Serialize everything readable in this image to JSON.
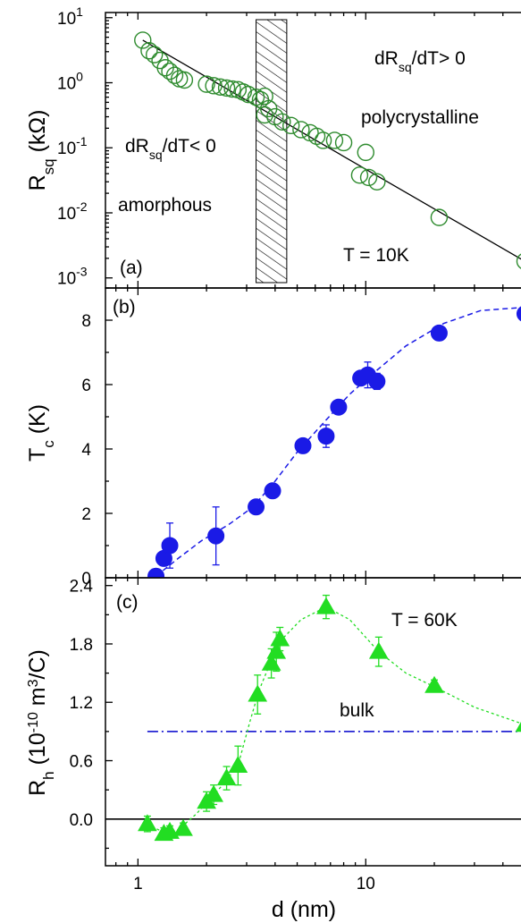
{
  "chart_data": [
    {
      "panel": "a",
      "type": "scatter",
      "panel_label": "(a)",
      "xscale": "log",
      "yscale": "log",
      "xlim": [
        0.72,
        55
      ],
      "ylim": [
        0.0007,
        12
      ],
      "ylabel": {
        "main": "R",
        "sub": "sq",
        "unit": " (kΩ)"
      },
      "yticks": [
        {
          "v": 0.001,
          "exp": "-3"
        },
        {
          "v": 0.01,
          "exp": "-2"
        },
        {
          "v": 0.1,
          "exp": "-1"
        },
        {
          "v": 1,
          "exp": "0"
        },
        {
          "v": 10,
          "exp": "1"
        }
      ],
      "tick_base": "10",
      "marker": "open-circle",
      "marker_color": "#2e8b2e",
      "points": [
        [
          1.05,
          4.5
        ],
        [
          1.12,
          3.1
        ],
        [
          1.18,
          2.7
        ],
        [
          1.25,
          2.2
        ],
        [
          1.32,
          1.7
        ],
        [
          1.38,
          1.5
        ],
        [
          1.45,
          1.3
        ],
        [
          1.52,
          1.15
        ],
        [
          1.6,
          1.1
        ],
        [
          2.0,
          0.95
        ],
        [
          2.15,
          0.9
        ],
        [
          2.3,
          0.86
        ],
        [
          2.45,
          0.83
        ],
        [
          2.6,
          0.8
        ],
        [
          2.75,
          0.78
        ],
        [
          2.9,
          0.72
        ],
        [
          3.05,
          0.66
        ],
        [
          3.3,
          0.6
        ],
        [
          3.45,
          0.55
        ],
        [
          3.6,
          0.62
        ],
        [
          3.6,
          0.32
        ],
        [
          3.75,
          0.4
        ],
        [
          4.0,
          0.3
        ],
        [
          4.3,
          0.25
        ],
        [
          4.7,
          0.22
        ],
        [
          5.2,
          0.19
        ],
        [
          5.7,
          0.17
        ],
        [
          6.1,
          0.15
        ],
        [
          6.5,
          0.13
        ],
        [
          7.3,
          0.13
        ],
        [
          8.0,
          0.12
        ],
        [
          10.0,
          0.085
        ],
        [
          9.4,
          0.038
        ],
        [
          10.3,
          0.035
        ],
        [
          11.2,
          0.03
        ],
        [
          21.0,
          0.0085
        ],
        [
          50.0,
          0.0018
        ]
      ],
      "fit_line": [
        [
          1.05,
          4.5
        ],
        [
          50.0,
          0.0018
        ]
      ],
      "hatched_band": [
        3.3,
        4.5
      ],
      "annotations": [
        {
          "name": "ann-positive",
          "main": "dR",
          "sub": "sq",
          "rest": "/dT> 0"
        },
        {
          "name": "ann-polycrystalline",
          "text": "polycrystalline"
        },
        {
          "name": "ann-negative",
          "main": "dR",
          "sub": "sq",
          "rest": "/dT< 0"
        },
        {
          "name": "ann-amorphous",
          "text": "amorphous"
        },
        {
          "name": "ann-temperature",
          "text": "T = 10K"
        }
      ]
    },
    {
      "panel": "b",
      "type": "scatter",
      "panel_label": "(b)",
      "xscale": "log",
      "xlim": [
        0.72,
        55
      ],
      "ylim": [
        0,
        9
      ],
      "ylabel": {
        "main": "T",
        "sub": "c",
        "unit": " (K)"
      },
      "yticks": [
        0,
        2,
        4,
        6,
        8
      ],
      "marker": "filled-circle",
      "marker_color": "#1a1ae6",
      "points": [
        {
          "x": 1.2,
          "y": 0.05,
          "err": 0
        },
        {
          "x": 1.3,
          "y": 0.6,
          "err": 0
        },
        {
          "x": 1.38,
          "y": 1.0,
          "err": 0.7
        },
        {
          "x": 2.2,
          "y": 1.3,
          "err": 0.9
        },
        {
          "x": 3.3,
          "y": 2.2,
          "err": 0.2
        },
        {
          "x": 3.9,
          "y": 2.7,
          "err": 0
        },
        {
          "x": 5.3,
          "y": 4.1,
          "err": 0
        },
        {
          "x": 6.7,
          "y": 4.4,
          "err": 0.35
        },
        {
          "x": 7.6,
          "y": 5.3,
          "err": 0
        },
        {
          "x": 9.5,
          "y": 6.2,
          "err": 0.2
        },
        {
          "x": 10.2,
          "y": 6.3,
          "err": 0.4
        },
        {
          "x": 11.2,
          "y": 6.1,
          "err": 0.25
        },
        {
          "x": 21.0,
          "y": 7.6,
          "err": 0
        },
        {
          "x": 50.0,
          "y": 8.2,
          "err": 0
        }
      ],
      "trend_curve": [
        [
          1.2,
          0.05
        ],
        [
          1.5,
          0.6
        ],
        [
          1.9,
          1.15
        ],
        [
          2.5,
          1.65
        ],
        [
          3.2,
          2.2
        ],
        [
          4.0,
          3.0
        ],
        [
          5.0,
          3.9
        ],
        [
          6.5,
          4.8
        ],
        [
          8.5,
          5.7
        ],
        [
          11.0,
          6.4
        ],
        [
          15.0,
          7.2
        ],
        [
          22.0,
          7.9
        ],
        [
          32.0,
          8.3
        ],
        [
          50.0,
          8.4
        ]
      ]
    },
    {
      "panel": "c",
      "type": "scatter",
      "panel_label": "(c)",
      "xscale": "log",
      "xlim": [
        0.72,
        55
      ],
      "ylim": [
        -0.48,
        2.48
      ],
      "xlabel": "d (nm)",
      "xticks": [
        {
          "v": 1,
          "label": "1"
        },
        {
          "v": 10,
          "label": "10"
        }
      ],
      "ylabel": {
        "main": "R",
        "sub": "h",
        "unit_a": " (10",
        "unit_a_sup": "-10",
        "unit_b": " m",
        "unit_b_sup": "3",
        "unit_c": "/C)"
      },
      "yticks": [
        {
          "v": 0,
          "label": "0.0"
        },
        {
          "v": 0.6,
          "label": "0.6"
        },
        {
          "v": 1.2,
          "label": "1.2"
        },
        {
          "v": 1.8,
          "label": "1.8"
        },
        {
          "v": 2.4,
          "label": "2.4"
        }
      ],
      "marker": "filled-triangle",
      "marker_color": "#22dd22",
      "points": [
        {
          "x": 1.1,
          "y": -0.05,
          "err": 0.08
        },
        {
          "x": 1.3,
          "y": -0.15,
          "err": 0.06
        },
        {
          "x": 1.38,
          "y": -0.13,
          "err": 0.06
        },
        {
          "x": 1.58,
          "y": -0.1,
          "err": 0.06
        },
        {
          "x": 2.0,
          "y": 0.18,
          "err": 0.1
        },
        {
          "x": 2.15,
          "y": 0.25,
          "err": 0.1
        },
        {
          "x": 2.45,
          "y": 0.42,
          "err": 0.12
        },
        {
          "x": 2.75,
          "y": 0.55,
          "err": 0.2
        },
        {
          "x": 3.35,
          "y": 1.28,
          "err": 0.2
        },
        {
          "x": 3.85,
          "y": 1.6,
          "err": 0.15
        },
        {
          "x": 4.05,
          "y": 1.72,
          "err": 0.2
        },
        {
          "x": 4.2,
          "y": 1.85,
          "err": 0.12
        },
        {
          "x": 6.7,
          "y": 2.18,
          "err": 0.12
        },
        {
          "x": 11.4,
          "y": 1.72,
          "err": 0.15
        },
        {
          "x": 20.0,
          "y": 1.37,
          "err": 0.06
        },
        {
          "x": 50.0,
          "y": 0.97,
          "err": 0
        }
      ],
      "trend_curve": [
        [
          1.1,
          -0.05
        ],
        [
          1.3,
          -0.14
        ],
        [
          1.5,
          -0.11
        ],
        [
          1.8,
          0.05
        ],
        [
          2.1,
          0.22
        ],
        [
          2.5,
          0.42
        ],
        [
          2.8,
          0.62
        ],
        [
          3.1,
          1.0
        ],
        [
          3.4,
          1.32
        ],
        [
          3.8,
          1.6
        ],
        [
          4.3,
          1.85
        ],
        [
          5.2,
          2.05
        ],
        [
          6.7,
          2.18
        ],
        [
          8.5,
          2.05
        ],
        [
          11.4,
          1.72
        ],
        [
          15.0,
          1.5
        ],
        [
          20.0,
          1.36
        ],
        [
          30.0,
          1.15
        ],
        [
          50.0,
          0.97
        ]
      ],
      "bulk_line": {
        "y": 0.9,
        "x_range": [
          1.1,
          50.0
        ],
        "label": "bulk",
        "color": "#0000cc"
      },
      "zero_line": 0,
      "annotations": [
        {
          "name": "ann-temperature",
          "text": "T = 60K"
        }
      ]
    }
  ]
}
